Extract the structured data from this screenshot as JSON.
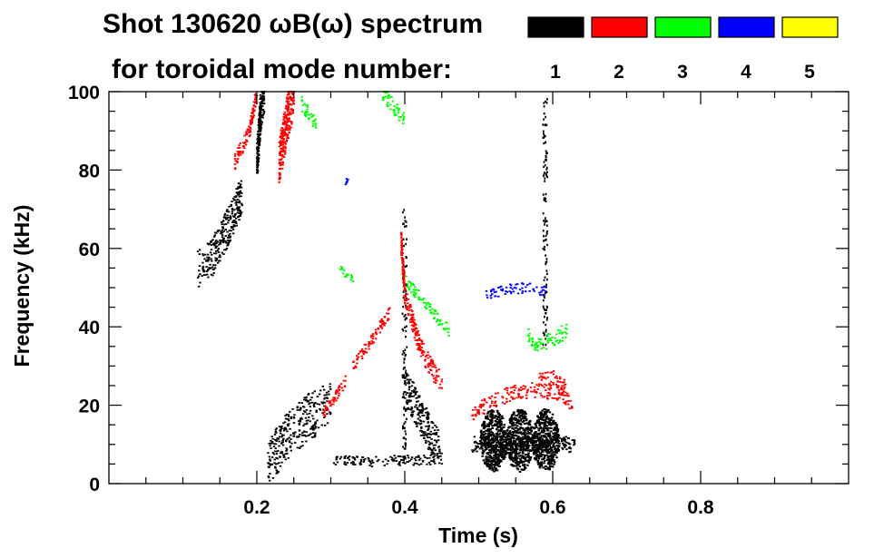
{
  "chart_data": {
    "type": "heatmap",
    "title_line1": "Shot 130620 ωB(ω) spectrum",
    "title_line2": "for toroidal mode number:",
    "xlabel": "Time (s)",
    "ylabel": "Frequency (kHz)",
    "xlim": [
      0.0,
      1.0
    ],
    "ylim": [
      0,
      100
    ],
    "x_ticks": [
      {
        "value": 0.2,
        "label": "0.2"
      },
      {
        "value": 0.4,
        "label": "0.4"
      },
      {
        "value": 0.6,
        "label": "0.6"
      },
      {
        "value": 0.8,
        "label": "0.8"
      }
    ],
    "y_ticks": [
      {
        "value": 0,
        "label": "0"
      },
      {
        "value": 20,
        "label": "20"
      },
      {
        "value": 40,
        "label": "40"
      },
      {
        "value": 60,
        "label": "60"
      },
      {
        "value": 80,
        "label": "80"
      },
      {
        "value": 100,
        "label": "100"
      }
    ],
    "x_minor_step": 0.05,
    "y_minor_step": 5,
    "grid": false,
    "legend_placement": "top-right",
    "legend": [
      {
        "label": "1",
        "color": "#000000"
      },
      {
        "label": "2",
        "color": "#ff0000"
      },
      {
        "label": "3",
        "color": "#00ff00"
      },
      {
        "label": "4",
        "color": "#0000ff"
      },
      {
        "label": "5",
        "color": "#ffff00"
      }
    ],
    "features": [
      {
        "mode": "1",
        "kind": "chirp",
        "points": [
          [
            0.12,
            55
          ],
          [
            0.14,
            58
          ],
          [
            0.16,
            65
          ],
          [
            0.18,
            74
          ]
        ],
        "width": 5
      },
      {
        "mode": "1",
        "kind": "chirp",
        "points": [
          [
            0.2,
            82
          ],
          [
            0.205,
            95
          ],
          [
            0.21,
            100
          ]
        ],
        "width": 5
      },
      {
        "mode": "1",
        "kind": "chirp",
        "points": [
          [
            0.215,
            5
          ],
          [
            0.24,
            12
          ],
          [
            0.27,
            17
          ],
          [
            0.3,
            20
          ]
        ],
        "width": 6
      },
      {
        "mode": "1",
        "kind": "chirp",
        "points": [
          [
            0.3,
            6
          ],
          [
            0.35,
            5.5
          ],
          [
            0.4,
            6
          ],
          [
            0.44,
            6
          ]
        ],
        "width": 1.3
      },
      {
        "mode": "1",
        "kind": "chirp",
        "points": [
          [
            0.4,
            25
          ],
          [
            0.42,
            18
          ],
          [
            0.44,
            10
          ],
          [
            0.45,
            8
          ]
        ],
        "width": 5
      },
      {
        "mode": "1",
        "kind": "bursts",
        "t": [
          0.52,
          0.555,
          0.59
        ],
        "f": 11,
        "df": 8,
        "dt": 0.018
      },
      {
        "mode": "1",
        "kind": "band",
        "t": [
          0.49,
          0.63
        ],
        "f": [
          8,
          12
        ]
      },
      {
        "mode": "1",
        "kind": "vline",
        "t": 0.59,
        "f": [
          35,
          100
        ]
      },
      {
        "mode": "1",
        "kind": "vline",
        "t": 0.4,
        "f": [
          5,
          70
        ]
      },
      {
        "mode": "2",
        "kind": "chirp",
        "points": [
          [
            0.17,
            82
          ],
          [
            0.19,
            90
          ],
          [
            0.2,
            100
          ]
        ],
        "width": 2
      },
      {
        "mode": "2",
        "kind": "chirp",
        "points": [
          [
            0.23,
            82
          ],
          [
            0.24,
            92
          ],
          [
            0.25,
            100
          ]
        ],
        "width": 6
      },
      {
        "mode": "2",
        "kind": "chirp",
        "points": [
          [
            0.33,
            30
          ],
          [
            0.36,
            38
          ],
          [
            0.38,
            44
          ]
        ],
        "width": 1.5
      },
      {
        "mode": "2",
        "kind": "chirp",
        "points": [
          [
            0.29,
            18
          ],
          [
            0.32,
            26
          ]
        ],
        "width": 1.5
      },
      {
        "mode": "2",
        "kind": "chirp",
        "points": [
          [
            0.395,
            62
          ],
          [
            0.4,
            48
          ],
          [
            0.42,
            35
          ],
          [
            0.44,
            28
          ],
          [
            0.45,
            26
          ]
        ],
        "width": 2.5
      },
      {
        "mode": "2",
        "kind": "chirp",
        "points": [
          [
            0.49,
            18
          ],
          [
            0.52,
            21
          ],
          [
            0.55,
            23.5
          ],
          [
            0.58,
            24
          ],
          [
            0.61,
            23
          ],
          [
            0.63,
            20
          ]
        ],
        "width": 2
      },
      {
        "mode": "2",
        "kind": "chirp",
        "points": [
          [
            0.58,
            26
          ],
          [
            0.6,
            27
          ],
          [
            0.62,
            24
          ]
        ],
        "width": 2
      },
      {
        "mode": "3",
        "kind": "chirp",
        "points": [
          [
            0.26,
            97
          ],
          [
            0.28,
            92
          ]
        ],
        "width": 2
      },
      {
        "mode": "3",
        "kind": "chirp",
        "points": [
          [
            0.37,
            100
          ],
          [
            0.385,
            96
          ],
          [
            0.4,
            93
          ]
        ],
        "width": 2
      },
      {
        "mode": "3",
        "kind": "chirp",
        "points": [
          [
            0.565,
            38
          ],
          [
            0.58,
            35
          ],
          [
            0.6,
            37
          ],
          [
            0.62,
            39
          ]
        ],
        "width": 2
      },
      {
        "mode": "3",
        "kind": "chirp",
        "points": [
          [
            0.4,
            52
          ],
          [
            0.44,
            43
          ],
          [
            0.46,
            39
          ]
        ],
        "width": 1.5
      },
      {
        "mode": "3",
        "kind": "chirp",
        "points": [
          [
            0.31,
            55
          ],
          [
            0.33,
            52
          ]
        ],
        "width": 1
      },
      {
        "mode": "4",
        "kind": "chirp",
        "points": [
          [
            0.51,
            48
          ],
          [
            0.54,
            49.5
          ],
          [
            0.57,
            50
          ],
          [
            0.59,
            49
          ]
        ],
        "width": 1.3
      },
      {
        "mode": "4",
        "kind": "chirp",
        "points": [
          [
            0.32,
            77
          ],
          [
            0.323,
            78
          ]
        ],
        "width": 1
      }
    ]
  }
}
